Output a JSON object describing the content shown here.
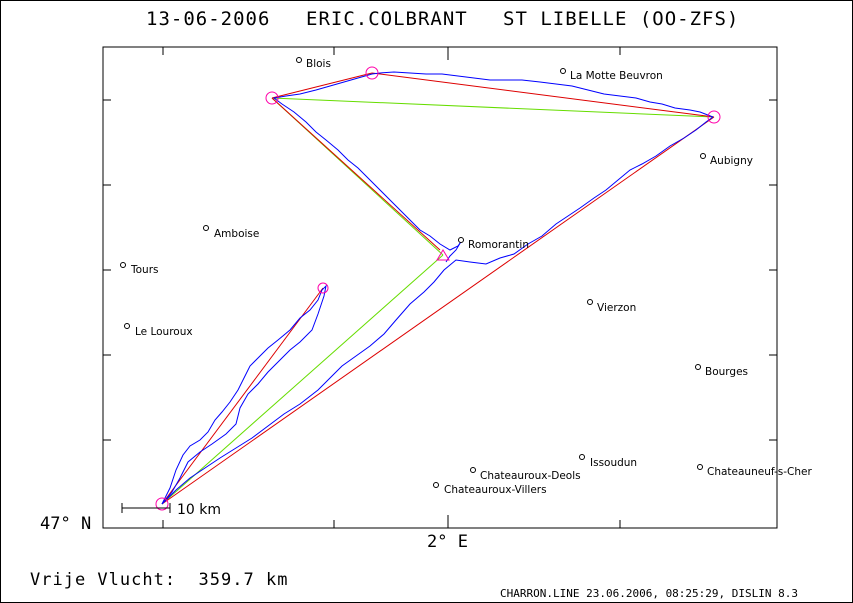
{
  "header": {
    "date": "13-06-2006",
    "pilot": "ERIC.COLBRANT",
    "glider": "ST LIBELLE (OO-ZFS)"
  },
  "axes": {
    "y_label": "47° N",
    "x_label": "2° E"
  },
  "scale_bar": {
    "label": "10 km"
  },
  "footer": {
    "distance_label": "Vrije Vlucht:",
    "distance_value": "359.7 km",
    "file_info": "CHARRON.LINE 23.06.2006, 08:25:29, DISLIN 8.3"
  },
  "towns": [
    {
      "name": "Blois",
      "label": "Blois"
    },
    {
      "name": "La Motte Beuvron",
      "label": "La Motte Beuvron"
    },
    {
      "name": "Aubigny",
      "label": "Aubigny"
    },
    {
      "name": "Amboise",
      "label": "Amboise"
    },
    {
      "name": "Tours",
      "label": "Tours"
    },
    {
      "name": "Romorantin",
      "label": "Romorantin"
    },
    {
      "name": "Le Louroux",
      "label": "Le Louroux"
    },
    {
      "name": "Vierzon",
      "label": "Vierzon"
    },
    {
      "name": "Bourges",
      "label": "Bourges"
    },
    {
      "name": "Issoudun",
      "label": "Issoudun"
    },
    {
      "name": "Chateauroux-Deols",
      "label": "Chateauroux-Deols"
    },
    {
      "name": "Chateauroux-Villers",
      "label": "Chateauroux-Villers"
    },
    {
      "name": "Chateauneuf-s-Cher",
      "label": "Chateauneuf-s-Cher"
    }
  ],
  "colors": {
    "track": "#0000ff",
    "task_line": "#dd0000",
    "optimized_line": "#66dd00",
    "turnpoint": "#ff00aa",
    "frame": "#000000"
  }
}
